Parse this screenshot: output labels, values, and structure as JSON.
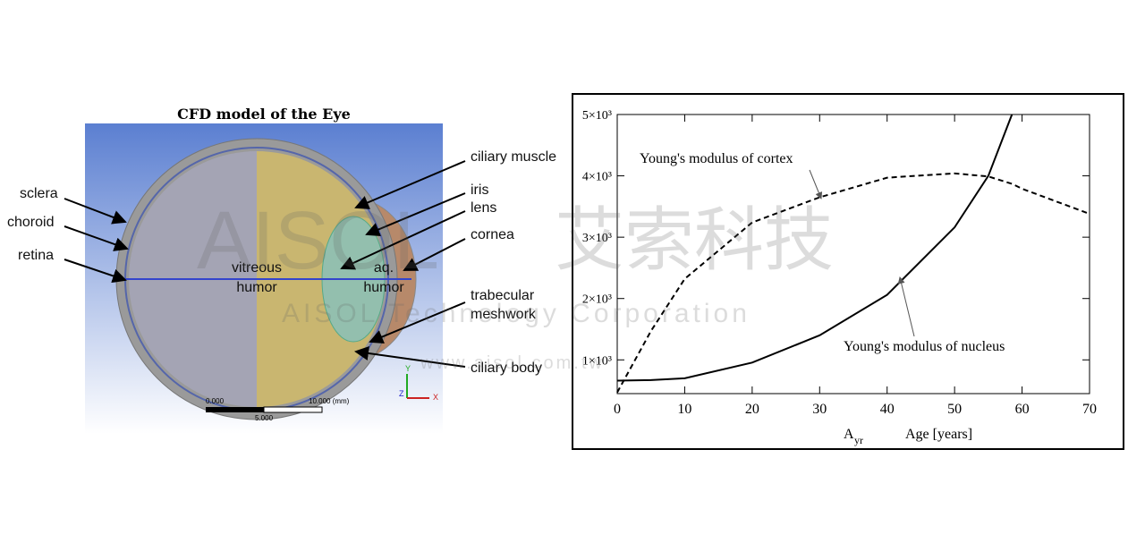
{
  "diagram": {
    "title": "CFD model of the Eye",
    "labels": [
      "sclera",
      "choroid",
      "retina",
      "ciliary muscle",
      "iris",
      "lens",
      "cornea",
      "trabecular",
      "meshwork",
      "ciliary body"
    ],
    "regions": [
      "vitreous",
      "humor",
      "aq.",
      "humor"
    ],
    "scale": [
      "0.000",
      "10.000 (mm)",
      "5.000"
    ],
    "axes": [
      "Y",
      "Z",
      "X"
    ]
  },
  "watermark": {
    "logo": "AISOL",
    "chinese": "艾索科技",
    "english": "AISOL Technology Corporation",
    "url": "www.aisol.com.tw"
  },
  "chart_data": {
    "type": "line",
    "x": [
      0,
      5,
      10,
      20,
      30,
      40,
      50,
      55,
      58.5,
      60,
      70
    ],
    "series": [
      {
        "name": "Young's modulus of cortex",
        "color": "#000000",
        "dash": true,
        "values": [
          470,
          1470,
          2320,
          3240,
          3650,
          3970,
          4040,
          3990,
          3870,
          3790,
          3380
        ]
      },
      {
        "name": "Young's modulus of nucleus",
        "color": "#000000",
        "dash": false,
        "values": [
          662,
          670,
          700,
          956,
          1400,
          2060,
          3160,
          4000,
          5000,
          null,
          null
        ]
      }
    ],
    "xlim": [
      0,
      70
    ],
    "ylim": [
      450,
      5000
    ],
    "xticks": [
      0,
      10,
      20,
      30,
      40,
      50,
      60,
      70
    ],
    "yticks": [
      {
        "value": 1000,
        "label": "1×10³"
      },
      {
        "value": 2000,
        "label": "2×10³"
      },
      {
        "value": 3000,
        "label": "3×10³"
      },
      {
        "value": 4000,
        "label": "4×10³"
      },
      {
        "value": 5000,
        "label": "5×10³"
      }
    ],
    "x_symbol": "A",
    "x_symbol_sub": "yr",
    "xlabel": "Age [years]"
  }
}
